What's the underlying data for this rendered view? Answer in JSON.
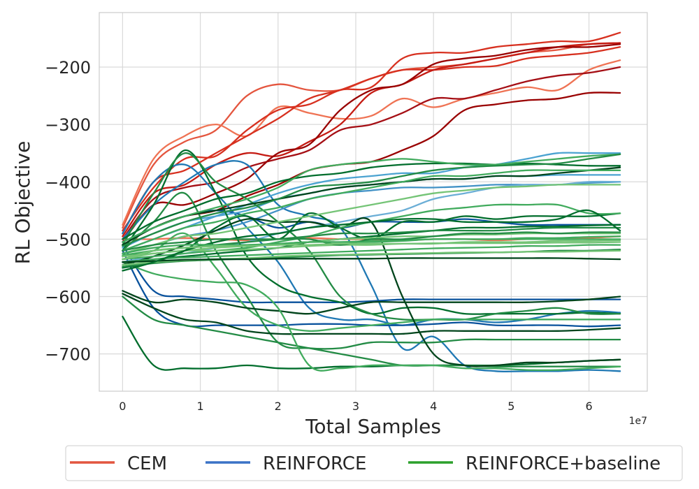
{
  "chart_data": {
    "type": "line",
    "title": "",
    "xlabel": "Total Samples",
    "ylabel": "RL Objective",
    "x_scale_label": "1e7",
    "xlim": [
      -0.3,
      6.75
    ],
    "ylim": [
      -765,
      -105
    ],
    "xticks": [
      0,
      1,
      2,
      3,
      4,
      5,
      6
    ],
    "xtick_labels": [
      "0",
      "1",
      "2",
      "3",
      "4",
      "5",
      "6"
    ],
    "yticks": [
      -200,
      -300,
      -400,
      -500,
      -600,
      -700
    ],
    "ytick_labels": [
      "−200",
      "−300",
      "−400",
      "−500",
      "−600",
      "−700"
    ],
    "grid": true,
    "legend": {
      "placement": "bottom-outside",
      "entries": [
        {
          "label": "CEM",
          "color": "#e2553f"
        },
        {
          "label": "REINFORCE",
          "color": "#3a72c6"
        },
        {
          "label": "REINFORCE+baseline",
          "color": "#2ca02c"
        }
      ]
    },
    "x": [
      0.0,
      0.4,
      0.8,
      1.2,
      1.6,
      2.0,
      2.4,
      2.8,
      3.2,
      3.6,
      4.0,
      4.4,
      4.8,
      5.2,
      5.6,
      6.0,
      6.4
    ],
    "series": [
      {
        "group": "CEM",
        "color": "#e4553e",
        "values": [
          -480,
          -370,
          -330,
          -310,
          -250,
          -230,
          -240,
          -240,
          -220,
          -205,
          -200,
          -195,
          -185,
          -175,
          -170,
          -160,
          -158
        ]
      },
      {
        "group": "CEM",
        "color": "#ef7354",
        "values": [
          -475,
          -360,
          -320,
          -300,
          -320,
          -270,
          -280,
          -290,
          -285,
          -255,
          -270,
          -255,
          -245,
          -235,
          -240,
          -205,
          -188
        ]
      },
      {
        "group": "CEM",
        "color": "#d7301f",
        "values": [
          -490,
          -400,
          -380,
          -350,
          -320,
          -290,
          -255,
          -240,
          -220,
          -205,
          -205,
          -200,
          -198,
          -185,
          -180,
          -175,
          -165
        ]
      },
      {
        "group": "CEM",
        "color": "#d7301f",
        "values": [
          -485,
          -410,
          -360,
          -355,
          -310,
          -275,
          -265,
          -240,
          -235,
          -185,
          -175,
          -175,
          -165,
          -160,
          -155,
          -155,
          -140
        ]
      },
      {
        "group": "CEM",
        "color": "#c51b13",
        "values": [
          -495,
          -420,
          -405,
          -370,
          -350,
          -355,
          -330,
          -300,
          -245,
          -230,
          -205,
          -195,
          -185,
          -175,
          -165,
          -160,
          -158
        ]
      },
      {
        "group": "CEM",
        "color": "#a50f15",
        "values": [
          -500,
          -430,
          -410,
          -400,
          -375,
          -360,
          -345,
          -310,
          -300,
          -280,
          -255,
          -255,
          -240,
          -225,
          -215,
          -210,
          -200
        ]
      },
      {
        "group": "CEM",
        "color": "#990000",
        "values": [
          -505,
          -440,
          -440,
          -420,
          -395,
          -350,
          -335,
          -275,
          -240,
          -230,
          -195,
          -185,
          -180,
          -170,
          -165,
          -165,
          -160
        ]
      },
      {
        "group": "CEM",
        "color": "#990000",
        "values": [
          -510,
          -480,
          -460,
          -450,
          -425,
          -405,
          -380,
          -370,
          -365,
          -345,
          -320,
          -275,
          -265,
          -258,
          -255,
          -245,
          -245
        ]
      },
      {
        "group": "CEM",
        "color": "#ef7354",
        "values": [
          -500,
          -500,
          -498,
          -500,
          -502,
          -500,
          -498,
          -500,
          -500,
          -502,
          -500,
          -500,
          -502,
          -500,
          -500,
          -498,
          -495
        ]
      },
      {
        "group": "REINFORCE",
        "color": "#1f78b4",
        "values": [
          -490,
          -400,
          -370,
          -420,
          -480,
          -540,
          -620,
          -640,
          -640,
          -650,
          -640,
          -640,
          -645,
          -640,
          -630,
          -625,
          -628
        ]
      },
      {
        "group": "REINFORCE",
        "color": "#1f78b4",
        "values": [
          -500,
          -440,
          -400,
          -370,
          -370,
          -440,
          -460,
          -480,
          -580,
          -690,
          -670,
          -720,
          -730,
          -730,
          -730,
          -728,
          -730
        ]
      },
      {
        "group": "REINFORCE",
        "color": "#08519c",
        "values": [
          -520,
          -620,
          -650,
          -650,
          -650,
          -650,
          -648,
          -648,
          -650,
          -650,
          -648,
          -645,
          -650,
          -650,
          -650,
          -652,
          -650
        ]
      },
      {
        "group": "REINFORCE",
        "color": "#08519c",
        "values": [
          -510,
          -590,
          -600,
          -605,
          -610,
          -610,
          -610,
          -610,
          -608,
          -605,
          -605,
          -605,
          -605,
          -605,
          -605,
          -605,
          -605
        ]
      },
      {
        "group": "REINFORCE",
        "color": "#08519c",
        "values": [
          -505,
          -480,
          -460,
          -450,
          -460,
          -480,
          -470,
          -480,
          -470,
          -470,
          -470,
          -465,
          -470,
          -475,
          -475,
          -475,
          -475
        ]
      },
      {
        "group": "REINFORCE",
        "color": "#4ba3d1",
        "values": [
          -520,
          -500,
          -480,
          -460,
          -440,
          -420,
          -405,
          -395,
          -390,
          -385,
          -385,
          -375,
          -370,
          -360,
          -350,
          -350,
          -350
        ]
      },
      {
        "group": "REINFORCE",
        "color": "#4ba3d1",
        "values": [
          -515,
          -490,
          -470,
          -460,
          -450,
          -430,
          -420,
          -410,
          -405,
          -400,
          -395,
          -395,
          -390,
          -390,
          -388,
          -388,
          -388
        ]
      },
      {
        "group": "REINFORCE",
        "color": "#4292c6",
        "values": [
          -525,
          -510,
          -495,
          -485,
          -470,
          -450,
          -430,
          -420,
          -415,
          -410,
          -410,
          -408,
          -405,
          -405,
          -405,
          -402,
          -400
        ]
      },
      {
        "group": "REINFORCE",
        "color": "#6baed6",
        "values": [
          -540,
          -530,
          -525,
          -515,
          -505,
          -490,
          -480,
          -470,
          -460,
          -450,
          -430,
          -420,
          -410,
          -405,
          -405,
          -400,
          -400
        ]
      },
      {
        "group": "REINFORCE+baseline",
        "color": "#006d2c",
        "values": [
          -520,
          -440,
          -345,
          -420,
          -530,
          -580,
          -600,
          -610,
          -630,
          -620,
          -620,
          -630,
          -630,
          -630,
          -630,
          -628,
          -630
        ]
      },
      {
        "group": "REINFORCE+baseline",
        "color": "#238b45",
        "values": [
          -510,
          -420,
          -350,
          -400,
          -430,
          -470,
          -520,
          -600,
          -630,
          -640,
          -640,
          -640,
          -630,
          -625,
          -620,
          -630,
          -630
        ]
      },
      {
        "group": "REINFORCE+baseline",
        "color": "#238b45",
        "values": [
          -520,
          -470,
          -420,
          -520,
          -600,
          -680,
          -690,
          -690,
          -680,
          -680,
          -680,
          -675,
          -675,
          -675,
          -675,
          -675,
          -675
        ]
      },
      {
        "group": "REINFORCE+baseline",
        "color": "#41ab5d",
        "values": [
          -530,
          -520,
          -490,
          -550,
          -620,
          -650,
          -660,
          -655,
          -650,
          -645,
          -640,
          -640,
          -640,
          -640,
          -640,
          -640,
          -640
        ]
      },
      {
        "group": "REINFORCE+baseline",
        "color": "#00441b",
        "values": [
          -590,
          -610,
          -605,
          -610,
          -620,
          -625,
          -630,
          -620,
          -610,
          -610,
          -610,
          -610,
          -610,
          -610,
          -608,
          -605,
          -600
        ]
      },
      {
        "group": "REINFORCE+baseline",
        "color": "#00441b",
        "values": [
          -595,
          -620,
          -640,
          -645,
          -660,
          -665,
          -665,
          -665,
          -665,
          -665,
          -660,
          -660,
          -660,
          -660,
          -660,
          -658,
          -655
        ]
      },
      {
        "group": "REINFORCE+baseline",
        "color": "#006d2c",
        "values": [
          -635,
          -720,
          -725,
          -725,
          -720,
          -725,
          -725,
          -722,
          -722,
          -720,
          -720,
          -720,
          -720,
          -718,
          -715,
          -712,
          -710
        ]
      },
      {
        "group": "REINFORCE+baseline",
        "color": "#238b45",
        "values": [
          -600,
          -640,
          -650,
          -660,
          -670,
          -680,
          -690,
          -700,
          -710,
          -720,
          -720,
          -720,
          -722,
          -722,
          -722,
          -722,
          -722
        ]
      },
      {
        "group": "REINFORCE+baseline",
        "color": "#41ab5d",
        "values": [
          -540,
          -560,
          -570,
          -575,
          -580,
          -620,
          -720,
          -725,
          -720,
          -720,
          -720,
          -725,
          -725,
          -728,
          -728,
          -725,
          -722
        ]
      },
      {
        "group": "REINFORCE+baseline",
        "color": "#006d2c",
        "values": [
          -550,
          -540,
          -520,
          -480,
          -460,
          -500,
          -455,
          -480,
          -500,
          -470,
          -470,
          -460,
          -465,
          -460,
          -460,
          -460,
          -455
        ]
      },
      {
        "group": "REINFORCE+baseline",
        "color": "#00441b",
        "values": [
          -545,
          -530,
          -510,
          -485,
          -465,
          -470,
          -470,
          -480,
          -470,
          -600,
          -700,
          -720,
          -720,
          -715,
          -715,
          -712,
          -710
        ]
      },
      {
        "group": "REINFORCE+baseline",
        "color": "#00441b",
        "values": [
          -510,
          -480,
          -460,
          -450,
          -440,
          -430,
          -420,
          -410,
          -405,
          -400,
          -395,
          -395,
          -390,
          -390,
          -385,
          -380,
          -375
        ]
      },
      {
        "group": "REINFORCE+baseline",
        "color": "#006d2c",
        "values": [
          -500,
          -470,
          -450,
          -430,
          -420,
          -400,
          -390,
          -385,
          -375,
          -370,
          -368,
          -368,
          -370,
          -368,
          -370,
          -372,
          -372
        ]
      },
      {
        "group": "REINFORCE+baseline",
        "color": "#41ab5d",
        "values": [
          -505,
          -480,
          -460,
          -445,
          -430,
          -410,
          -380,
          -370,
          -365,
          -360,
          -365,
          -370,
          -370,
          -365,
          -360,
          -355,
          -352
        ]
      },
      {
        "group": "REINFORCE+baseline",
        "color": "#238b45",
        "values": [
          -512,
          -490,
          -470,
          -455,
          -445,
          -430,
          -410,
          -405,
          -400,
          -390,
          -380,
          -375,
          -372,
          -370,
          -368,
          -360,
          -352
        ]
      },
      {
        "group": "REINFORCE+baseline",
        "color": "#41ab5d",
        "values": [
          -520,
          -500,
          -480,
          -470,
          -455,
          -445,
          -430,
          -420,
          -410,
          -400,
          -390,
          -390,
          -385,
          -380,
          -380,
          -380,
          -380
        ]
      },
      {
        "group": "REINFORCE+baseline",
        "color": "#74c476",
        "values": [
          -525,
          -510,
          -495,
          -490,
          -480,
          -470,
          -460,
          -450,
          -440,
          -430,
          -420,
          -415,
          -410,
          -408,
          -405,
          -405,
          -405
        ]
      },
      {
        "group": "REINFORCE+baseline",
        "color": "#41ab5d",
        "values": [
          -535,
          -530,
          -525,
          -520,
          -515,
          -505,
          -495,
          -480,
          -470,
          -460,
          -450,
          -445,
          -440,
          -440,
          -440,
          -455,
          -455
        ]
      },
      {
        "group": "REINFORCE+baseline",
        "color": "#006d2c",
        "values": [
          -540,
          -535,
          -530,
          -525,
          -520,
          -515,
          -505,
          -500,
          -495,
          -490,
          -485,
          -480,
          -480,
          -478,
          -478,
          -476,
          -475
        ]
      },
      {
        "group": "REINFORCE+baseline",
        "color": "#238b45",
        "values": [
          -530,
          -520,
          -515,
          -510,
          -505,
          -500,
          -495,
          -490,
          -490,
          -488,
          -485,
          -485,
          -485,
          -482,
          -480,
          -480,
          -480
        ]
      },
      {
        "group": "REINFORCE+baseline",
        "color": "#74c476",
        "values": [
          -535,
          -525,
          -520,
          -515,
          -512,
          -510,
          -505,
          -500,
          -498,
          -495,
          -495,
          -492,
          -492,
          -490,
          -490,
          -490,
          -490
        ]
      },
      {
        "group": "REINFORCE+baseline",
        "color": "#41ab5d",
        "values": [
          -528,
          -520,
          -515,
          -512,
          -510,
          -508,
          -505,
          -505,
          -503,
          -502,
          -500,
          -500,
          -500,
          -498,
          -498,
          -496,
          -495
        ]
      },
      {
        "group": "REINFORCE+baseline",
        "color": "#74c476",
        "values": [
          -530,
          -525,
          -520,
          -520,
          -518,
          -515,
          -512,
          -510,
          -510,
          -508,
          -508,
          -505,
          -505,
          -505,
          -503,
          -503,
          -502
        ]
      },
      {
        "group": "REINFORCE+baseline",
        "color": "#41ab5d",
        "values": [
          -540,
          -535,
          -532,
          -530,
          -528,
          -526,
          -524,
          -522,
          -520,
          -518,
          -516,
          -515,
          -514,
          -512,
          -512,
          -510,
          -510
        ]
      },
      {
        "group": "REINFORCE+baseline",
        "color": "#238b45",
        "values": [
          -548,
          -542,
          -538,
          -536,
          -534,
          -532,
          -530,
          -528,
          -527,
          -526,
          -525,
          -524,
          -523,
          -522,
          -520,
          -520,
          -518
        ]
      },
      {
        "group": "REINFORCE+baseline",
        "color": "#74c476",
        "values": [
          -545,
          -540,
          -537,
          -535,
          -533,
          -530,
          -528,
          -527,
          -526,
          -525,
          -524,
          -523,
          -523,
          -522,
          -522,
          -521,
          -520
        ]
      },
      {
        "group": "REINFORCE+baseline",
        "color": "#00441b",
        "values": [
          -540,
          -538,
          -536,
          -535,
          -535,
          -534,
          -534,
          -534,
          -534,
          -533,
          -533,
          -533,
          -533,
          -533,
          -533,
          -534,
          -535
        ]
      },
      {
        "group": "REINFORCE+baseline",
        "color": "#006d2c",
        "values": [
          -555,
          -540,
          -520,
          -505,
          -495,
          -490,
          -480,
          -475,
          -470,
          -465,
          -465,
          -470,
          -470,
          -470,
          -465,
          -450,
          -485
        ]
      },
      {
        "group": "REINFORCE+baseline",
        "color": "#238b45",
        "values": [
          -520,
          -510,
          -505,
          -500,
          -500,
          -500,
          -500,
          -510,
          -500,
          -500,
          -495,
          -490,
          -490,
          -488,
          -490,
          -488,
          -488
        ]
      },
      {
        "group": "REINFORCE+baseline",
        "color": "#41ab5d",
        "values": [
          -525,
          -515,
          -510,
          -510,
          -510,
          -508,
          -505,
          -505,
          -505,
          -503,
          -500,
          -500,
          -500,
          -500,
          -500,
          -500,
          -500
        ]
      },
      {
        "group": "REINFORCE+baseline",
        "color": "#74c476",
        "values": [
          -535,
          -520,
          -515,
          -512,
          -512,
          -510,
          -510,
          -508,
          -508,
          -508,
          -507,
          -507,
          -507,
          -507,
          -506,
          -506,
          -505
        ]
      }
    ]
  }
}
